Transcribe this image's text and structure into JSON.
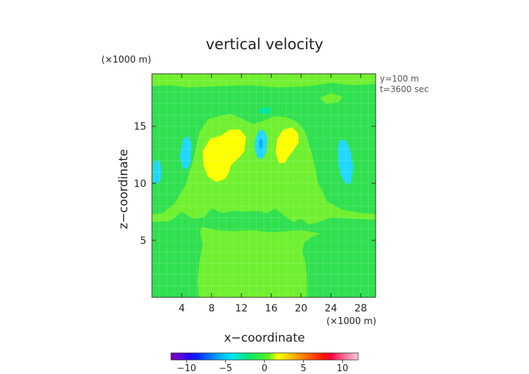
{
  "chart_data": {
    "type": "heatmap",
    "title": "vertical velocity",
    "xlabel": "x−coordinate",
    "ylabel": "z−coordinate",
    "x_unit": "(×1000 m)",
    "y_unit": "(×1000 m)",
    "annotations": [
      "y=100 m",
      "t=3600 sec"
    ],
    "xlim": [
      0,
      30
    ],
    "ylim": [
      0,
      19.6
    ],
    "x_ticks": [
      4,
      8,
      12,
      16,
      20,
      24,
      28
    ],
    "y_ticks": [
      5,
      10,
      15
    ],
    "grid": true,
    "colorbar": {
      "min": -12,
      "max": 12,
      "ticks": [
        -10,
        -5,
        0,
        5,
        10
      ],
      "tick_labels": [
        "−10",
        "−5",
        "0",
        "5",
        "10"
      ],
      "colors": [
        "#7a00b8",
        "#5a00d8",
        "#2a00ff",
        "#0028ff",
        "#0060ff",
        "#0098ff",
        "#00c8ff",
        "#00e8f0",
        "#00e8a0",
        "#10e860",
        "#30f040",
        "#60f020",
        "#ffff00",
        "#ffd800",
        "#ffa800",
        "#ff7800",
        "#ff4800",
        "#ff1800",
        "#ff0040",
        "#ff5080",
        "#ff90b0",
        "#ffc8d8"
      ]
    },
    "field_levels": {
      "background": "#30e050",
      "weak_positive": "#70f030",
      "strong_positive": "#ffff00",
      "weak_negative": "#00e898",
      "strong_negative": "#20d8ff",
      "core_negative": "#10b0f0"
    },
    "regions": [
      {
        "level": "weak_positive",
        "points": [
          [
            0,
            19.6
          ],
          [
            30,
            19.6
          ],
          [
            30,
            18.7
          ],
          [
            27,
            18.6
          ],
          [
            24,
            18.8
          ],
          [
            21,
            18.5
          ],
          [
            17,
            18.4
          ],
          [
            13,
            18.6
          ],
          [
            9,
            18.5
          ],
          [
            5,
            18.4
          ],
          [
            2,
            18.6
          ],
          [
            0,
            18.5
          ]
        ]
      },
      {
        "level": "weak_positive",
        "points": [
          [
            0,
            7.3
          ],
          [
            1.5,
            7.4
          ],
          [
            3,
            8.2
          ],
          [
            4.5,
            9.8
          ],
          [
            5.5,
            12
          ],
          [
            6.4,
            14.5
          ],
          [
            7.5,
            15.6
          ],
          [
            9,
            15.9
          ],
          [
            10.5,
            16.1
          ],
          [
            12,
            15.7
          ],
          [
            13.5,
            15.2
          ],
          [
            15,
            15.5
          ],
          [
            16.5,
            15.9
          ],
          [
            18,
            15.8
          ],
          [
            19.5,
            15.4
          ],
          [
            20.5,
            14.6
          ],
          [
            21.5,
            12.5
          ],
          [
            22.3,
            10
          ],
          [
            23.5,
            8.4
          ],
          [
            25.5,
            7.7
          ],
          [
            28,
            7.4
          ],
          [
            30,
            7.3
          ],
          [
            30,
            6.8
          ],
          [
            27,
            6.9
          ],
          [
            24,
            7.0
          ],
          [
            22.5,
            6.6
          ],
          [
            21,
            6.4
          ],
          [
            20,
            6.9
          ],
          [
            19,
            6.6
          ],
          [
            18.3,
            6.9
          ],
          [
            16.5,
            7.8
          ],
          [
            15.5,
            7.4
          ],
          [
            14,
            7.6
          ],
          [
            12.5,
            7.5
          ],
          [
            11,
            7.6
          ],
          [
            9.5,
            7.4
          ],
          [
            8,
            7.8
          ],
          [
            7,
            7.0
          ],
          [
            5.5,
            6.9
          ],
          [
            4,
            7.5
          ],
          [
            2.5,
            6.7
          ],
          [
            0,
            6.6
          ]
        ]
      },
      {
        "level": "weak_positive",
        "points": [
          [
            6.6,
            6.2
          ],
          [
            8.5,
            5.9
          ],
          [
            11,
            5.8
          ],
          [
            13.5,
            5.9
          ],
          [
            16,
            5.7
          ],
          [
            18,
            5.8
          ],
          [
            20,
            5.9
          ],
          [
            22.6,
            5.6
          ],
          [
            21.2,
            5.2
          ],
          [
            20.4,
            4.8
          ],
          [
            20.2,
            4.0
          ],
          [
            20.6,
            3.0
          ],
          [
            20.8,
            1.5
          ],
          [
            20.8,
            0
          ],
          [
            6.3,
            0
          ],
          [
            6.1,
            1.5
          ],
          [
            6.4,
            3.2
          ],
          [
            6.8,
            4.6
          ],
          [
            6.5,
            5.6
          ]
        ]
      },
      {
        "level": "weak_positive",
        "points": [
          [
            22.5,
            17.5
          ],
          [
            24,
            17.9
          ],
          [
            25.6,
            17.6
          ],
          [
            25,
            17.1
          ],
          [
            23.3,
            17.0
          ]
        ]
      },
      {
        "level": "strong_positive",
        "points": [
          [
            6.8,
            12.8
          ],
          [
            7.8,
            13.9
          ],
          [
            9.3,
            14.2
          ],
          [
            10.4,
            14.7
          ],
          [
            11.8,
            14.7
          ],
          [
            12.6,
            14.1
          ],
          [
            12.4,
            12.8
          ],
          [
            11.6,
            12.2
          ],
          [
            10.6,
            11.6
          ],
          [
            10.3,
            10.9
          ],
          [
            9.8,
            10.4
          ],
          [
            8.6,
            10.1
          ],
          [
            7.5,
            10.6
          ],
          [
            6.9,
            11.6
          ]
        ]
      },
      {
        "level": "strong_positive",
        "points": [
          [
            16.6,
            12.7
          ],
          [
            16.8,
            13.9
          ],
          [
            17.6,
            14.7
          ],
          [
            18.8,
            14.9
          ],
          [
            19.6,
            14.4
          ],
          [
            19.7,
            13.6
          ],
          [
            19.1,
            13.0
          ],
          [
            18.4,
            12.4
          ],
          [
            17.8,
            11.8
          ],
          [
            17.0,
            11.8
          ]
        ]
      },
      {
        "level": "weak_negative",
        "points": [
          [
            14.2,
            16.4
          ],
          [
            15.0,
            16.7
          ],
          [
            16.0,
            16.6
          ],
          [
            15.8,
            16.1
          ],
          [
            14.6,
            16.1
          ]
        ]
      },
      {
        "level": "strong_negative",
        "points": [
          [
            13.8,
            13.8
          ],
          [
            14.3,
            14.6
          ],
          [
            15.0,
            14.7
          ],
          [
            15.5,
            14.0
          ],
          [
            15.3,
            12.7
          ],
          [
            14.8,
            12.1
          ],
          [
            14.1,
            12.3
          ],
          [
            13.8,
            13.0
          ]
        ]
      },
      {
        "level": "core_negative",
        "points": [
          [
            14.3,
            13.6
          ],
          [
            14.6,
            14.0
          ],
          [
            14.9,
            13.7
          ],
          [
            14.8,
            13.1
          ],
          [
            14.5,
            13.0
          ]
        ]
      },
      {
        "level": "strong_negative",
        "points": [
          [
            3.7,
            12.4
          ],
          [
            4.2,
            13.8
          ],
          [
            4.8,
            14.2
          ],
          [
            5.3,
            13.5
          ],
          [
            5.2,
            11.9
          ],
          [
            4.7,
            11.2
          ],
          [
            4.1,
            11.4
          ]
        ]
      },
      {
        "level": "strong_negative",
        "points": [
          [
            0.1,
            10.2
          ],
          [
            0.2,
            11.8
          ],
          [
            0.9,
            12.1
          ],
          [
            1.3,
            11.3
          ],
          [
            1.2,
            10.3
          ],
          [
            0.6,
            9.9
          ]
        ]
      },
      {
        "level": "strong_negative",
        "points": [
          [
            24.9,
            13.0
          ],
          [
            25.2,
            13.8
          ],
          [
            26.0,
            13.8
          ],
          [
            26.6,
            12.9
          ],
          [
            27.0,
            11.4
          ],
          [
            26.7,
            10.1
          ],
          [
            26.0,
            9.9
          ],
          [
            25.4,
            10.6
          ],
          [
            25.0,
            11.8
          ]
        ]
      }
    ]
  }
}
